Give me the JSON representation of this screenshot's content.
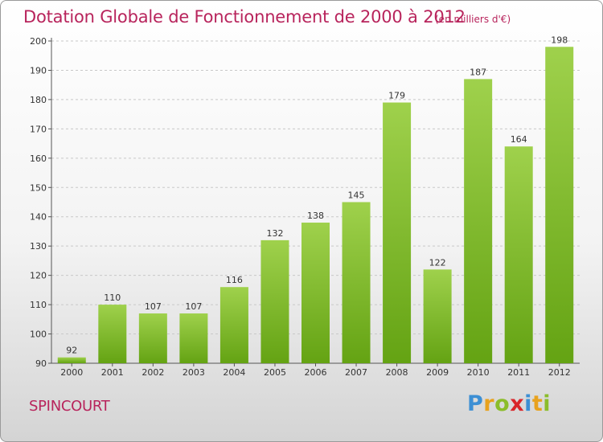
{
  "header": {
    "title": "Dotation Globale de Fonctionnement de 2000 à 2012",
    "unit_note": "(en milliers d'€)"
  },
  "footer": {
    "commune": "SPINCOURT",
    "logo_letters": [
      {
        "char": "P",
        "color": "#3c8fd4"
      },
      {
        "char": "r",
        "color": "#e8a21e"
      },
      {
        "char": "o",
        "color": "#8bbd2a"
      },
      {
        "char": "x",
        "color": "#d9262a"
      },
      {
        "char": "i",
        "color": "#3c8fd4"
      },
      {
        "char": "t",
        "color": "#e8a21e"
      },
      {
        "char": "i",
        "color": "#8bbd2a"
      }
    ]
  },
  "colors": {
    "title": "#b8245c",
    "bar_light": "#9fd14c",
    "bar_dark": "#64a313",
    "grid": "#c8c8c8",
    "axis": "#555555"
  },
  "chart_data": {
    "type": "bar",
    "title": "Dotation Globale de Fonctionnement de 2000 à 2012",
    "subtitle": "(en milliers d'€)",
    "xlabel": "",
    "ylabel": "",
    "categories": [
      "2000",
      "2001",
      "2002",
      "2003",
      "2004",
      "2005",
      "2006",
      "2007",
      "2008",
      "2009",
      "2010",
      "2011",
      "2012"
    ],
    "values": [
      92,
      110,
      107,
      107,
      116,
      132,
      138,
      145,
      179,
      122,
      187,
      164,
      198
    ],
    "ylim": [
      90,
      200
    ],
    "yticks": [
      90,
      100,
      110,
      120,
      130,
      140,
      150,
      160,
      170,
      180,
      190,
      200
    ],
    "grid": "horizontal dashed",
    "legend": "none"
  }
}
